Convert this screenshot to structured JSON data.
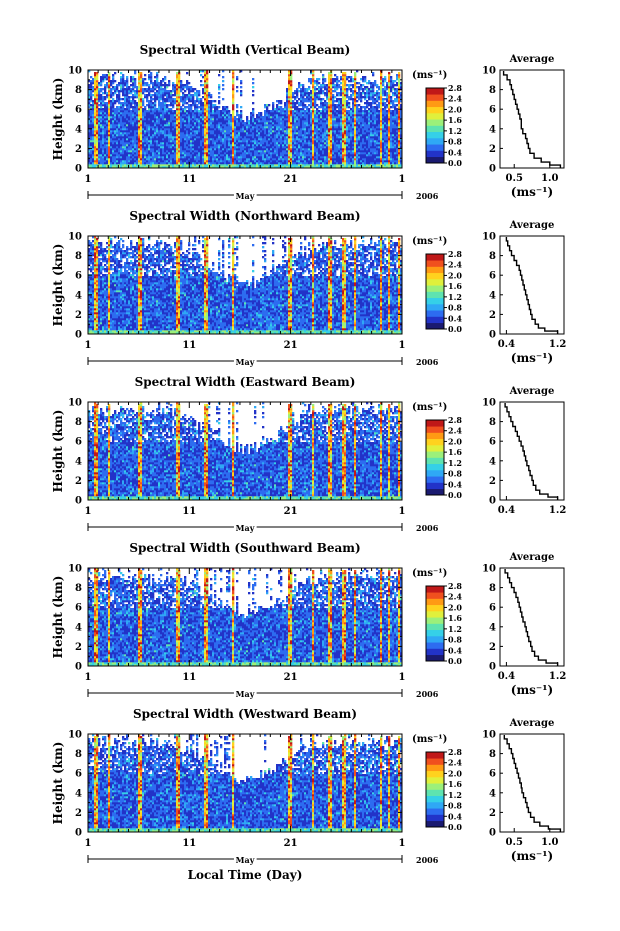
{
  "figure": {
    "common_xlabel": "Local Time (Day)"
  },
  "colorscale": [
    "#1a1a70",
    "#2233c8",
    "#2d6cf0",
    "#2fa8f5",
    "#35d0e8",
    "#5ee3b0",
    "#9cf07a",
    "#e0f03c",
    "#ffd21e",
    "#ff9a14",
    "#f0501e",
    "#c01818"
  ],
  "chart_data": [
    {
      "type": "heatmap",
      "title": "Spectral Width (Vertical Beam)",
      "ylabel": "Height (km)",
      "ylim": [
        0,
        10
      ],
      "yticks": [
        "0",
        "2",
        "4",
        "6",
        "8",
        "10"
      ],
      "x_tick_labels": [
        "1",
        "11",
        "21",
        "1"
      ],
      "month_label": "May",
      "year_label": "2006",
      "colorbar": {
        "unit": "(ms⁻¹)",
        "ticks": [
          "0.0",
          "0.4",
          "0.8",
          "1.2",
          "1.6",
          "2.0",
          "2.4",
          "2.8"
        ],
        "range": [
          0,
          2.8
        ]
      },
      "average_profile": {
        "title": "Average",
        "xlabel": "(ms⁻¹)",
        "xticks": [
          "0.5",
          "1.0"
        ],
        "xtick_values": [
          0.5,
          1.0
        ],
        "xlim": [
          0.3,
          1.2
        ],
        "ylim": [
          0,
          10
        ],
        "yticks": [
          "0",
          "2",
          "4",
          "6",
          "8",
          "10"
        ],
        "height_km": [
          0,
          0.3,
          0.6,
          1,
          1.5,
          2,
          2.5,
          3,
          3.5,
          4,
          4.5,
          5,
          5.5,
          6,
          6.5,
          7,
          7.5,
          8,
          8.5,
          9,
          9.5
        ],
        "width_ms": [
          1.15,
          1.0,
          0.88,
          0.78,
          0.72,
          0.7,
          0.68,
          0.66,
          0.62,
          0.6,
          0.6,
          0.58,
          0.56,
          0.54,
          0.52,
          0.5,
          0.48,
          0.46,
          0.44,
          0.4,
          0.35
        ]
      }
    },
    {
      "type": "heatmap",
      "title": "Spectral Width (Northward Beam)",
      "ylabel": "Height (km)",
      "ylim": [
        0,
        10
      ],
      "yticks": [
        "0",
        "2",
        "4",
        "6",
        "8",
        "10"
      ],
      "x_tick_labels": [
        "1",
        "11",
        "21",
        "1"
      ],
      "month_label": "May",
      "year_label": "2006",
      "colorbar": {
        "unit": "(ms⁻¹)",
        "ticks": [
          "0.0",
          "0.4",
          "0.8",
          "1.2",
          "1.6",
          "2.0",
          "2.4",
          "2.8"
        ],
        "range": [
          0,
          2.8
        ]
      },
      "average_profile": {
        "title": "Average",
        "xlabel": "(ms⁻¹)",
        "xticks": [
          "0.4",
          "1.2"
        ],
        "xtick_values": [
          0.4,
          1.2
        ],
        "xlim": [
          0.3,
          1.3
        ],
        "ylim": [
          0,
          10
        ],
        "yticks": [
          "0",
          "2",
          "4",
          "6",
          "8",
          "10"
        ],
        "height_km": [
          0,
          0.3,
          0.6,
          1,
          1.5,
          2,
          2.5,
          3,
          3.5,
          4,
          4.5,
          5,
          5.5,
          6,
          6.5,
          7,
          7.5,
          8,
          8.5,
          9,
          9.5
        ],
        "width_ms": [
          1.2,
          1.0,
          0.9,
          0.85,
          0.8,
          0.78,
          0.76,
          0.74,
          0.72,
          0.7,
          0.68,
          0.66,
          0.64,
          0.62,
          0.6,
          0.56,
          0.52,
          0.48,
          0.45,
          0.42,
          0.4
        ]
      }
    },
    {
      "type": "heatmap",
      "title": "Spectral Width (Eastward Beam)",
      "ylabel": "Height (km)",
      "ylim": [
        0,
        10
      ],
      "yticks": [
        "0",
        "2",
        "4",
        "6",
        "8",
        "10"
      ],
      "x_tick_labels": [
        "1",
        "11",
        "21",
        "1"
      ],
      "month_label": "May",
      "year_label": "2006",
      "colorbar": {
        "unit": "(ms⁻¹)",
        "ticks": [
          "0.0",
          "0.4",
          "0.8",
          "1.2",
          "1.6",
          "2.0",
          "2.4",
          "2.8"
        ],
        "range": [
          0,
          2.8
        ]
      },
      "average_profile": {
        "title": "Average",
        "xlabel": "",
        "xticks": [
          "0.4",
          "1.2"
        ],
        "xtick_values": [
          0.4,
          1.2
        ],
        "xlim": [
          0.3,
          1.3
        ],
        "ylim": [
          0,
          10
        ],
        "yticks": [
          "0",
          "2",
          "4",
          "6",
          "8",
          "10"
        ],
        "height_km": [
          0,
          0.3,
          0.6,
          1,
          1.5,
          2,
          2.5,
          3,
          3.5,
          4,
          4.5,
          5,
          5.5,
          6,
          6.5,
          7,
          7.5,
          8,
          8.5,
          9,
          9.5
        ],
        "width_ms": [
          1.2,
          1.05,
          0.92,
          0.86,
          0.82,
          0.8,
          0.77,
          0.75,
          0.72,
          0.7,
          0.68,
          0.66,
          0.63,
          0.6,
          0.57,
          0.54,
          0.5,
          0.47,
          0.44,
          0.41,
          0.38
        ]
      }
    },
    {
      "type": "heatmap",
      "title": "Spectral Width (Southward Beam)",
      "ylabel": "Height (km)",
      "ylim": [
        0,
        10
      ],
      "yticks": [
        "0",
        "2",
        "4",
        "6",
        "8",
        "10"
      ],
      "x_tick_labels": [
        "1",
        "11",
        "21",
        "1"
      ],
      "month_label": "May",
      "year_label": "2006",
      "colorbar": {
        "unit": "(ms⁻¹)",
        "ticks": [
          "0.0",
          "0.4",
          "0.8",
          "1.2",
          "1.6",
          "2.0",
          "2.4",
          "2.8"
        ],
        "range": [
          0,
          2.8
        ]
      },
      "average_profile": {
        "title": "Average",
        "xlabel": "(ms⁻¹)",
        "xticks": [
          "0.4",
          "1.2"
        ],
        "xtick_values": [
          0.4,
          1.2
        ],
        "xlim": [
          0.3,
          1.3
        ],
        "ylim": [
          0,
          10
        ],
        "yticks": [
          "0",
          "2",
          "4",
          "6",
          "8",
          "10"
        ],
        "height_km": [
          0,
          0.3,
          0.6,
          1,
          1.5,
          2,
          2.5,
          3,
          3.5,
          4,
          4.5,
          5,
          5.5,
          6,
          6.5,
          7,
          7.5,
          8,
          8.5,
          9,
          9.5
        ],
        "width_ms": [
          1.2,
          1.02,
          0.9,
          0.84,
          0.8,
          0.78,
          0.75,
          0.73,
          0.71,
          0.69,
          0.66,
          0.64,
          0.62,
          0.6,
          0.58,
          0.55,
          0.52,
          0.48,
          0.45,
          0.42,
          0.38
        ]
      }
    },
    {
      "type": "heatmap",
      "title": "Spectral Width (Westward Beam)",
      "ylabel": "Height (km)",
      "ylim": [
        0,
        10
      ],
      "yticks": [
        "0",
        "2",
        "4",
        "6",
        "8",
        "10"
      ],
      "x_tick_labels": [
        "1",
        "11",
        "21",
        "1"
      ],
      "month_label": "May",
      "year_label": "2006",
      "colorbar": {
        "unit": "(ms⁻¹)",
        "ticks": [
          "0.0",
          "0.4",
          "0.8",
          "1.2",
          "1.6",
          "2.0",
          "2.4",
          "2.8"
        ],
        "range": [
          0,
          2.8
        ]
      },
      "average_profile": {
        "title": "Average",
        "xlabel": "(ms⁻¹)",
        "xticks": [
          "0.5",
          "1.0"
        ],
        "xtick_values": [
          0.5,
          1.0
        ],
        "xlim": [
          0.3,
          1.2
        ],
        "ylim": [
          0,
          10
        ],
        "yticks": [
          "0",
          "2",
          "4",
          "6",
          "8",
          "10"
        ],
        "height_km": [
          0,
          0.3,
          0.6,
          1,
          1.5,
          2,
          2.5,
          3,
          3.5,
          4,
          4.5,
          5,
          5.5,
          6,
          6.5,
          7,
          7.5,
          8,
          8.5,
          9,
          9.5
        ],
        "width_ms": [
          1.15,
          0.98,
          0.86,
          0.78,
          0.73,
          0.7,
          0.68,
          0.66,
          0.63,
          0.61,
          0.6,
          0.58,
          0.56,
          0.54,
          0.52,
          0.5,
          0.48,
          0.46,
          0.43,
          0.4,
          0.36
        ]
      }
    }
  ]
}
